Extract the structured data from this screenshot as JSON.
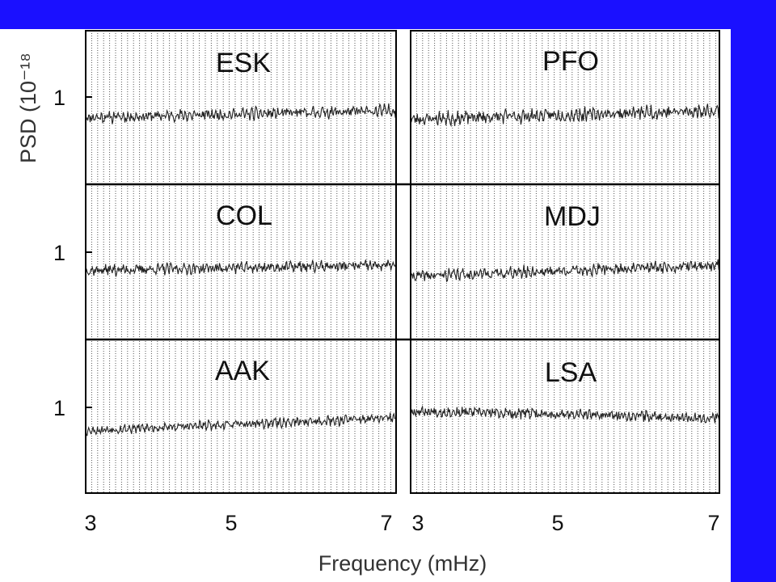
{
  "colors": {
    "accent_bar": "#1a10ff",
    "line": "#222222",
    "grid": "#555555"
  },
  "chart_data": {
    "type": "line",
    "xlabel": "Frequency (mHz)",
    "ylabel": "PSD (10⁻¹⁸",
    "x_ticks": [
      "3",
      "5",
      "7"
    ],
    "y_tick": "1",
    "xlim": [
      3,
      7
    ],
    "grid": true,
    "panels": [
      {
        "station": "ESK",
        "seed": 11,
        "start": 0.7,
        "end": 0.78,
        "amp": 0.2,
        "noise": 0.05
      },
      {
        "station": "PFO",
        "seed": 23,
        "start": 0.68,
        "end": 0.78,
        "amp": 0.22,
        "noise": 0.06
      },
      {
        "station": "COL",
        "seed": 37,
        "start": 0.72,
        "end": 0.78,
        "amp": 0.16,
        "noise": 0.05
      },
      {
        "station": "MDJ",
        "seed": 41,
        "start": 0.65,
        "end": 0.78,
        "amp": 0.18,
        "noise": 0.05
      },
      {
        "station": "AAK",
        "seed": 53,
        "start": 0.65,
        "end": 0.8,
        "amp": 0.18,
        "noise": 0.04
      },
      {
        "station": "LSA",
        "seed": 67,
        "start": 0.88,
        "end": 0.8,
        "amp": 0.12,
        "noise": 0.05
      }
    ]
  }
}
